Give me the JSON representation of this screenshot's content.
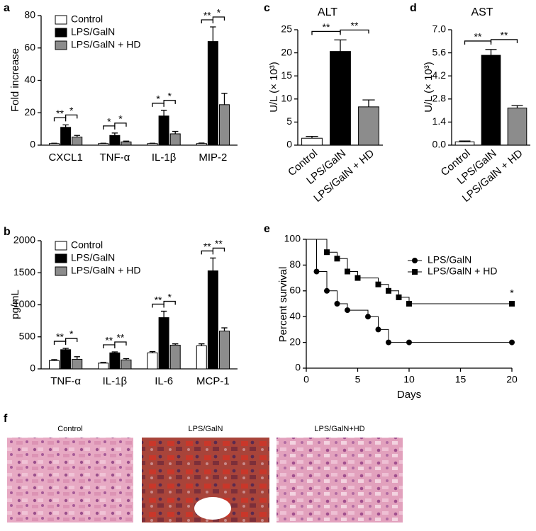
{
  "chart_data": [
    {
      "type": "bar",
      "label": "a",
      "ylabel": "Fold increase",
      "categories": [
        "CXCL1",
        "TNF-α",
        "IL-1β",
        "MIP-2"
      ],
      "series": [
        {
          "name": "Control",
          "color": "#ffffff",
          "values": [
            1,
            1,
            1,
            1
          ],
          "errors": [
            0.2,
            0.2,
            0.2,
            0.3
          ]
        },
        {
          "name": "LPS/GalN",
          "color": "#000000",
          "values": [
            11,
            6,
            18,
            64
          ],
          "errors": [
            1.5,
            1.5,
            3.5,
            9
          ]
        },
        {
          "name": "LPS/GalN + HD",
          "color": "#8c8c8c",
          "values": [
            5,
            2,
            7,
            25
          ],
          "errors": [
            1,
            0.5,
            1.5,
            7
          ]
        }
      ],
      "annotations": [
        {
          "label": "**",
          "category": 0,
          "series": [
            0,
            1
          ]
        },
        {
          "label": "*",
          "category": 0,
          "series": [
            1,
            2
          ]
        },
        {
          "label": "*",
          "category": 1,
          "series": [
            0,
            1
          ]
        },
        {
          "label": "*",
          "category": 1,
          "series": [
            1,
            2
          ]
        },
        {
          "label": "*",
          "category": 2,
          "series": [
            0,
            1
          ]
        },
        {
          "label": "*",
          "category": 2,
          "series": [
            1,
            2
          ]
        },
        {
          "label": "**",
          "category": 3,
          "series": [
            0,
            1
          ]
        },
        {
          "label": "*",
          "category": 3,
          "series": [
            1,
            2
          ]
        }
      ],
      "ylim": [
        0,
        80
      ],
      "yticks": [
        0,
        20,
        40,
        60,
        80
      ]
    },
    {
      "type": "bar",
      "label": "b",
      "ylabel": "pg/mL",
      "categories": [
        "TNF-α",
        "IL-1β",
        "IL-6",
        "MCP-1"
      ],
      "series": [
        {
          "name": "Control",
          "color": "#ffffff",
          "values": [
            130,
            90,
            250,
            360
          ],
          "errors": [
            15,
            10,
            20,
            30
          ]
        },
        {
          "name": "LPS/GalN",
          "color": "#000000",
          "values": [
            300,
            250,
            800,
            1530
          ],
          "errors": [
            20,
            15,
            100,
            200
          ]
        },
        {
          "name": "LPS/GalN + HD",
          "color": "#8c8c8c",
          "values": [
            150,
            140,
            370,
            590
          ],
          "errors": [
            40,
            20,
            20,
            50
          ]
        }
      ],
      "annotations": [
        {
          "label": "**",
          "category": 0,
          "series": [
            0,
            1
          ]
        },
        {
          "label": "*",
          "category": 0,
          "series": [
            1,
            2
          ]
        },
        {
          "label": "**",
          "category": 1,
          "series": [
            0,
            1
          ]
        },
        {
          "label": "**",
          "category": 1,
          "series": [
            1,
            2
          ]
        },
        {
          "label": "**",
          "category": 2,
          "series": [
            0,
            1
          ]
        },
        {
          "label": "*",
          "category": 2,
          "series": [
            1,
            2
          ]
        },
        {
          "label": "**",
          "category": 3,
          "series": [
            0,
            1
          ]
        },
        {
          "label": "**",
          "category": 3,
          "series": [
            1,
            2
          ]
        }
      ],
      "ylim": [
        0,
        2000
      ],
      "yticks": [
        0,
        500,
        1000,
        1500,
        2000
      ]
    },
    {
      "type": "bar",
      "label": "c",
      "title": "ALT",
      "ylabel": "U/L (× 10³)",
      "categories": [
        "Control",
        "LPS/GalN",
        "LPS/GalN + HD"
      ],
      "values": [
        1.5,
        20.3,
        8.3
      ],
      "errors": [
        0.4,
        2.5,
        1.5
      ],
      "colors": [
        "#ffffff",
        "#000000",
        "#8c8c8c"
      ],
      "annotations": [
        {
          "label": "**",
          "categories": [
            0,
            1
          ]
        },
        {
          "label": "**",
          "categories": [
            1,
            2
          ]
        }
      ],
      "ylim": [
        0,
        25
      ],
      "yticks": [
        0,
        5,
        10,
        15,
        20,
        25
      ]
    },
    {
      "type": "bar",
      "label": "d",
      "title": "AST",
      "ylabel": "U/L (× 10³)",
      "categories": [
        "Control",
        "LPS/GalN",
        "LPS/GalN + HD"
      ],
      "values": [
        0.2,
        5.45,
        2.25
      ],
      "errors": [
        0.05,
        0.35,
        0.15
      ],
      "colors": [
        "#ffffff",
        "#000000",
        "#8c8c8c"
      ],
      "annotations": [
        {
          "label": "**",
          "categories": [
            0,
            1
          ]
        },
        {
          "label": "**",
          "categories": [
            1,
            2
          ]
        }
      ],
      "ylim": [
        0,
        7
      ],
      "yticks": [
        {
          "value": 0,
          "label": "0.0"
        },
        1.4,
        2.8,
        4.2,
        5.6,
        {
          "value": 7,
          "label": "7.0"
        }
      ]
    },
    {
      "type": "line",
      "label": "e",
      "step": true,
      "xlabel": "Days",
      "ylabel": "Percent survival",
      "series": [
        {
          "name": "LPS/GalN",
          "color": "#000000",
          "marker": "circle",
          "x": [
            1,
            2,
            3,
            4,
            6,
            7,
            8,
            10,
            20
          ],
          "values": [
            75,
            60,
            50,
            45,
            40,
            30,
            20,
            20,
            20
          ]
        },
        {
          "name": "LPS/GalN + HD",
          "color": "#000000",
          "marker": "square",
          "x": [
            2,
            3,
            4,
            5,
            7,
            8,
            9,
            10,
            20
          ],
          "values": [
            90,
            85,
            75,
            70,
            65,
            60,
            55,
            50,
            50
          ]
        }
      ],
      "annotations": [
        {
          "label": "*",
          "series": 1,
          "point": 8
        }
      ],
      "xlim": [
        0,
        20
      ],
      "xticks": [
        0,
        5,
        10,
        15,
        20
      ],
      "ylim": [
        0,
        100
      ],
      "yticks": [
        0,
        20,
        40,
        60,
        80,
        100
      ]
    }
  ],
  "histology": {
    "label": "f",
    "captions": [
      "Control",
      "LPS/GalN",
      "LPS/GalN+HD"
    ]
  }
}
